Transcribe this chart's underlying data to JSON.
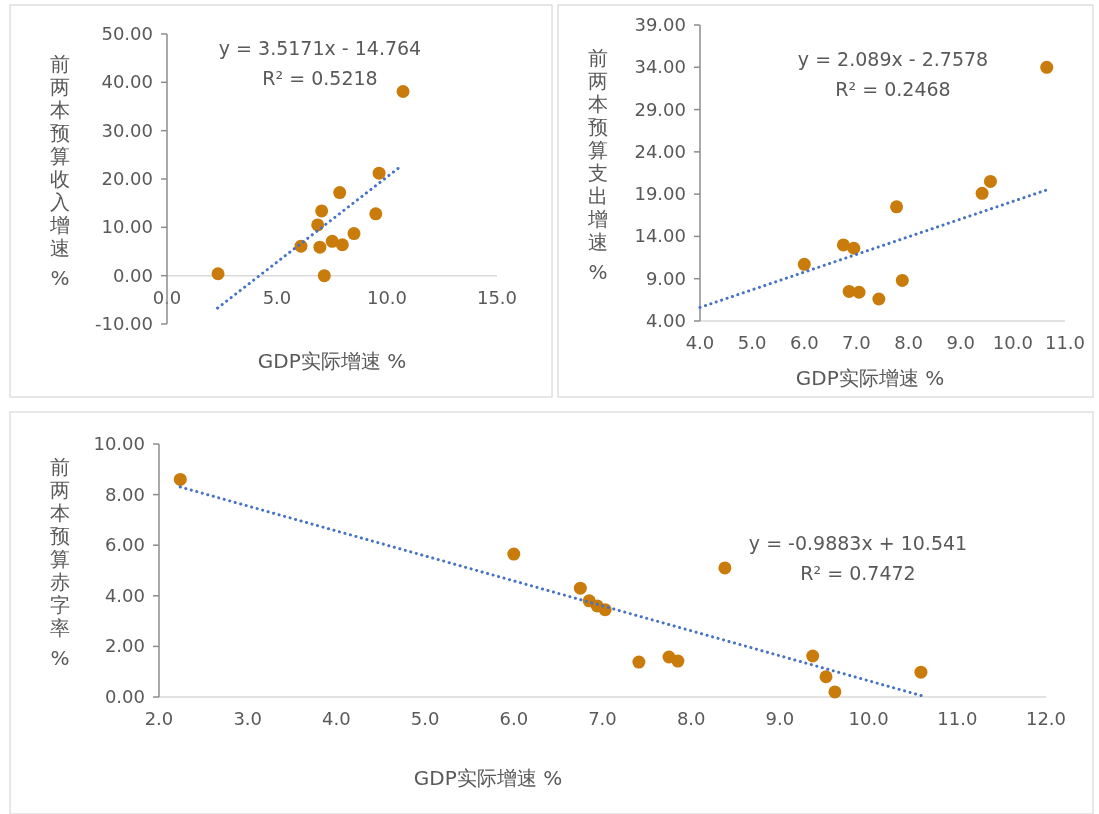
{
  "chart_data": [
    {
      "type": "scatter",
      "xlabel": "GDP实际增速 %",
      "ylabel": "前两本预算收入增速 %",
      "annotations": [
        "y = 3.5171x - 14.764",
        "R² = 0.5218"
      ],
      "xlim": [
        0,
        15
      ],
      "xticks": [
        {
          "value": 0,
          "label": "0.0"
        },
        {
          "value": 5,
          "label": "5.0"
        },
        {
          "value": 10,
          "label": "10.0"
        },
        {
          "value": 15,
          "label": "15.0"
        }
      ],
      "ylim": [
        -10,
        50
      ],
      "yticks": [
        {
          "value": -10,
          "label": "-10.00"
        },
        {
          "value": 0,
          "label": "0.00"
        },
        {
          "value": 10,
          "label": "10.00"
        },
        {
          "value": 20,
          "label": "20.00"
        },
        {
          "value": 30,
          "label": "30.00"
        },
        {
          "value": 40,
          "label": "40.00"
        },
        {
          "value": 50,
          "label": "50.00"
        }
      ],
      "grid": false,
      "series": [
        {
          "type": "scatter",
          "marker": "circle",
          "color": "#c97b0b",
          "x": [
            10.73,
            9.64,
            9.49,
            7.85,
            7.03,
            6.85,
            6.09,
            6.95,
            7.51,
            7.97,
            8.5,
            7.15,
            2.32
          ],
          "values": [
            38.1,
            21.2,
            12.8,
            17.2,
            13.4,
            10.5,
            6.1,
            5.9,
            7.1,
            6.4,
            8.7,
            0.0,
            0.4
          ]
        },
        {
          "type": "line",
          "line_style": "dotted",
          "color": "#4472c4",
          "marker": "none",
          "x": [
            2.3,
            10.65
          ],
          "values": [
            -6.7,
            22.7
          ]
        }
      ]
    },
    {
      "type": "scatter",
      "xlabel": "GDP实际增速 %",
      "ylabel": "前两本预算支出增速 %",
      "annotations": [
        "y = 2.089x - 2.7578",
        "R² = 0.2468"
      ],
      "xlim": [
        4,
        11
      ],
      "xticks": [
        {
          "value": 4,
          "label": "4.0"
        },
        {
          "value": 5,
          "label": "5.0"
        },
        {
          "value": 6,
          "label": "6.0"
        },
        {
          "value": 7,
          "label": "7.0"
        },
        {
          "value": 8,
          "label": "8.0"
        },
        {
          "value": 9,
          "label": "9.0"
        },
        {
          "value": 10,
          "label": "10.0"
        },
        {
          "value": 11,
          "label": "11.0"
        }
      ],
      "ylim": [
        4,
        39
      ],
      "yticks": [
        {
          "value": 4,
          "label": "4.00"
        },
        {
          "value": 9,
          "label": "9.00"
        },
        {
          "value": 14,
          "label": "14.00"
        },
        {
          "value": 19,
          "label": "19.00"
        },
        {
          "value": 24,
          "label": "24.00"
        },
        {
          "value": 29,
          "label": "29.00"
        },
        {
          "value": 34,
          "label": "34.00"
        },
        {
          "value": 39,
          "label": "39.00"
        }
      ],
      "grid": false,
      "series": [
        {
          "type": "scatter",
          "marker": "circle",
          "color": "#c97b0b",
          "x": [
            10.65,
            9.57,
            9.41,
            7.77,
            6.75,
            6.95,
            6.0,
            7.88,
            6.86,
            7.05,
            7.43
          ],
          "values": [
            34.0,
            20.5,
            19.1,
            17.5,
            13.0,
            12.6,
            10.7,
            8.8,
            7.5,
            7.4,
            6.6
          ]
        },
        {
          "type": "line",
          "line_style": "dotted",
          "color": "#4472c4",
          "marker": "none",
          "x": [
            4.0,
            10.65
          ],
          "values": [
            5.6,
            19.5
          ]
        }
      ]
    },
    {
      "type": "scatter",
      "xlabel": "GDP实际增速 %",
      "ylabel": "前两本预算赤字率 %",
      "annotations": [
        "y = -0.9883x + 10.541",
        "R² = 0.7472"
      ],
      "xlim": [
        2,
        12
      ],
      "xticks": [
        {
          "value": 2,
          "label": "2.0"
        },
        {
          "value": 3,
          "label": "3.0"
        },
        {
          "value": 4,
          "label": "4.0"
        },
        {
          "value": 5,
          "label": "5.0"
        },
        {
          "value": 6,
          "label": "6.0"
        },
        {
          "value": 7,
          "label": "7.0"
        },
        {
          "value": 8,
          "label": "8.0"
        },
        {
          "value": 9,
          "label": "9.0"
        },
        {
          "value": 10,
          "label": "10.0"
        },
        {
          "value": 11,
          "label": "11.0"
        },
        {
          "value": 12,
          "label": "12.0"
        }
      ],
      "ylim": [
        0,
        10
      ],
      "yticks": [
        {
          "value": 0,
          "label": "0.00"
        },
        {
          "value": 2,
          "label": "2.00"
        },
        {
          "value": 4,
          "label": "4.00"
        },
        {
          "value": 6,
          "label": "6.00"
        },
        {
          "value": 8,
          "label": "8.00"
        },
        {
          "value": 10,
          "label": "10.00"
        }
      ],
      "grid": false,
      "series": [
        {
          "type": "scatter",
          "marker": "circle",
          "color": "#c97b0b",
          "x": [
            2.24,
            6.0,
            6.75,
            6.85,
            6.94,
            7.03,
            7.41,
            7.75,
            7.85,
            8.38,
            9.37,
            9.52,
            9.62,
            10.59
          ],
          "values": [
            8.6,
            5.65,
            4.3,
            3.8,
            3.6,
            3.45,
            1.38,
            1.58,
            1.42,
            5.1,
            1.62,
            0.8,
            0.2,
            0.98
          ]
        },
        {
          "type": "line",
          "line_style": "dotted",
          "color": "#4472c4",
          "marker": "none",
          "x": [
            2.24,
            10.65
          ],
          "values": [
            8.3,
            0.0
          ]
        }
      ]
    }
  ]
}
